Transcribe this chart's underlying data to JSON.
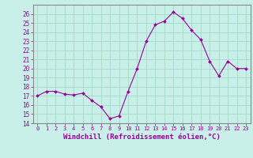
{
  "x": [
    0,
    1,
    2,
    3,
    4,
    5,
    6,
    7,
    8,
    9,
    10,
    11,
    12,
    13,
    14,
    15,
    16,
    17,
    18,
    19,
    20,
    21,
    22,
    23
  ],
  "y": [
    17.0,
    17.5,
    17.5,
    17.2,
    17.1,
    17.3,
    16.5,
    15.8,
    14.5,
    14.8,
    17.5,
    20.0,
    23.0,
    24.8,
    25.2,
    26.2,
    25.5,
    24.2,
    23.2,
    20.8,
    19.2,
    20.8,
    20.0,
    20.0
  ],
  "bg_color": "#c8f0e8",
  "line_color": "#990099",
  "marker_color": "#990099",
  "grid_color": "#aaddcc",
  "tick_color": "#990099",
  "xlabel": "Windchill (Refroidissement éolien,°C)",
  "xlabel_color": "#990099",
  "ylim": [
    14,
    27
  ],
  "yticks": [
    14,
    15,
    16,
    17,
    18,
    19,
    20,
    21,
    22,
    23,
    24,
    25,
    26
  ],
  "xticks": [
    0,
    1,
    2,
    3,
    4,
    5,
    6,
    7,
    8,
    9,
    10,
    11,
    12,
    13,
    14,
    15,
    16,
    17,
    18,
    19,
    20,
    21,
    22,
    23
  ],
  "spine_color": "#888888"
}
